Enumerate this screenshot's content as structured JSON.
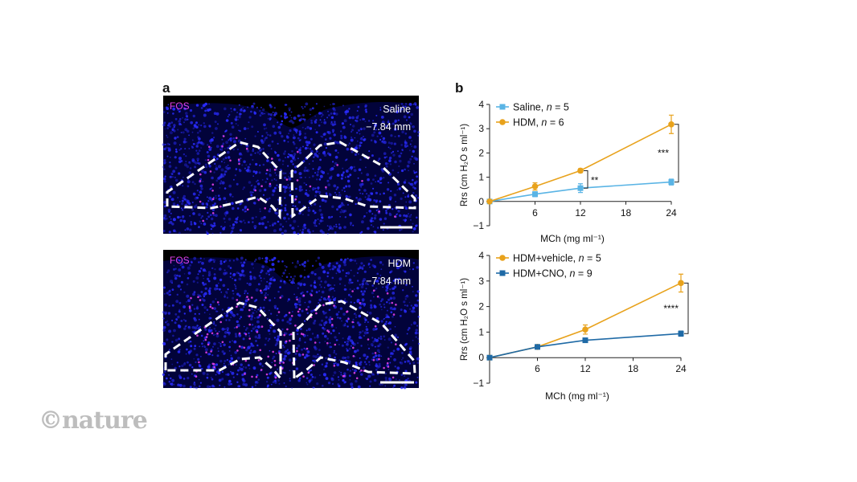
{
  "figure": {
    "panel_a": {
      "letter": "a",
      "images": [
        {
          "marker": "FOS",
          "condition": "Saline",
          "depth": "−7.84 mm"
        },
        {
          "marker": "FOS",
          "condition": "HDM",
          "depth": "−7.84 mm"
        }
      ]
    },
    "panel_b": {
      "letter": "b"
    }
  },
  "colors": {
    "saline": "#5ab4e5",
    "hdm": "#e8a21c",
    "cno": "#1f6aa6",
    "micro_bg": "#02033a",
    "nuclei": "#2a2cff",
    "fos_spot": "#e040e8"
  },
  "chart_data": [
    {
      "type": "line",
      "xlabel": "MCh (mg ml⁻¹)",
      "ylabel": "Rrs (cm H₂O s ml⁻¹)",
      "x": [
        0,
        6,
        12,
        24
      ],
      "xticks": [
        "6",
        "12",
        "18",
        "24"
      ],
      "xtick_values": [
        6,
        12,
        18,
        24
      ],
      "yticks": [
        "4",
        "3",
        "2",
        "1",
        "0",
        "−1"
      ],
      "ytick_values": [
        4,
        3,
        2,
        1,
        0,
        -1
      ],
      "xlim": [
        0,
        24
      ],
      "ylim": [
        -1,
        4
      ],
      "series": [
        {
          "name": "Saline",
          "n_label": "n = 5",
          "marker": "square",
          "color_key": "saline",
          "values": [
            0,
            0.3,
            0.55,
            0.8
          ],
          "errors": [
            0,
            0.1,
            0.18,
            0.12
          ]
        },
        {
          "name": "HDM",
          "n_label": "n = 6",
          "marker": "circle",
          "color_key": "hdm",
          "values": [
            0,
            0.62,
            1.27,
            3.18
          ],
          "errors": [
            0,
            0.15,
            0.08,
            0.38
          ]
        }
      ],
      "significance": [
        {
          "label": "**",
          "x": 12,
          "y1": 0.55,
          "y2": 1.27
        },
        {
          "label": "***",
          "x": 24,
          "y1": 0.8,
          "y2": 3.18
        }
      ]
    },
    {
      "type": "line",
      "xlabel": "MCh (mg ml⁻¹)",
      "ylabel": "Rrs (cm H₂O s ml⁻¹)",
      "x": [
        0,
        6,
        12,
        24
      ],
      "xticks": [
        "6",
        "12",
        "18",
        "24"
      ],
      "xtick_values": [
        6,
        12,
        18,
        24
      ],
      "yticks": [
        "4",
        "3",
        "2",
        "1",
        "0",
        "−1"
      ],
      "ytick_values": [
        4,
        3,
        2,
        1,
        0,
        -1
      ],
      "xlim": [
        0,
        24
      ],
      "ylim": [
        -1,
        4
      ],
      "series": [
        {
          "name": "HDM+vehicle",
          "n_label": "n = 5",
          "marker": "circle",
          "color_key": "hdm",
          "values": [
            0,
            0.42,
            1.1,
            2.92
          ],
          "errors": [
            0,
            0.05,
            0.18,
            0.35
          ]
        },
        {
          "name": "HDM+CNO",
          "n_label": "n = 9",
          "marker": "square",
          "color_key": "cno",
          "values": [
            0,
            0.42,
            0.68,
            0.94
          ],
          "errors": [
            0,
            0.04,
            0.08,
            0.1
          ]
        }
      ],
      "significance": [
        {
          "label": "****",
          "x": 24,
          "y1": 0.94,
          "y2": 2.92
        }
      ]
    }
  ],
  "logo": {
    "text": "©nature"
  }
}
